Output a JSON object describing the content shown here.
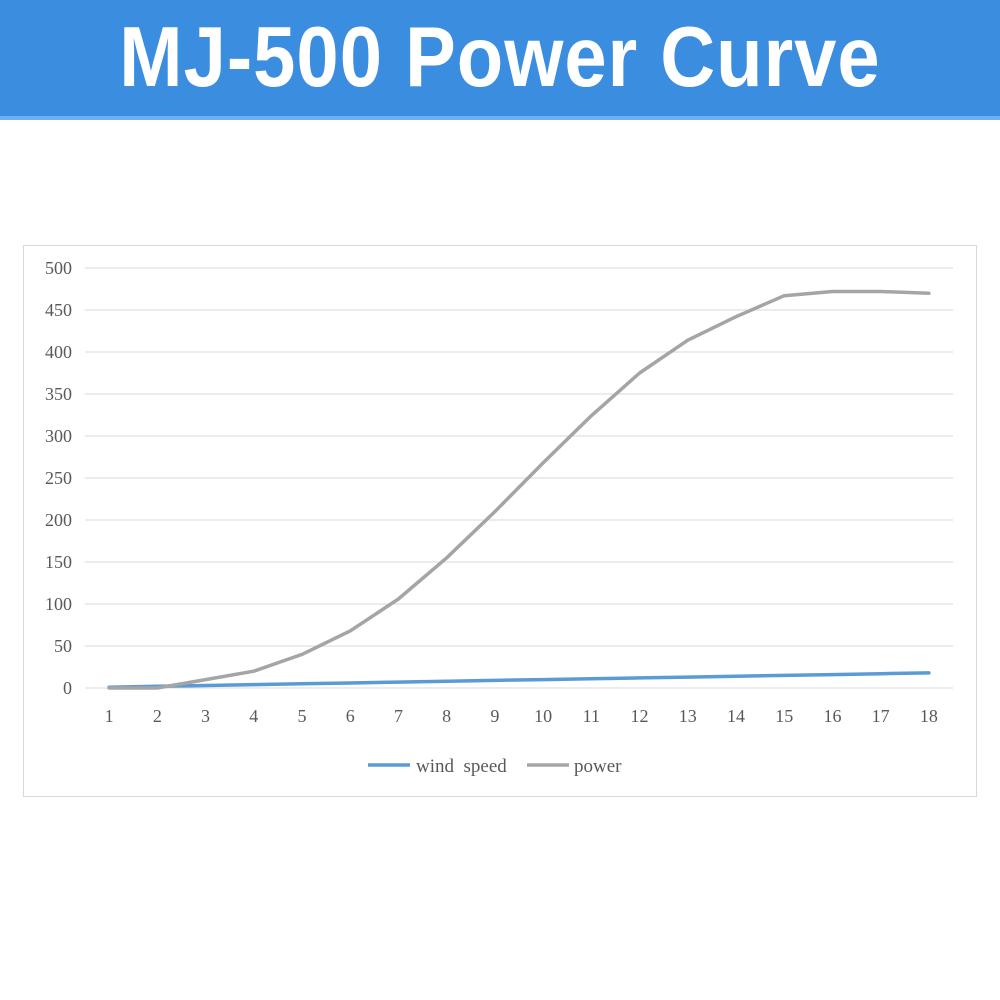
{
  "header": {
    "title": "MJ-500 Power Curve"
  },
  "colors": {
    "banner": "#3b8de0",
    "wind_speed": "#5b9bd5",
    "power": "#a5a5a5",
    "grid": "#d9d9d9"
  },
  "chart_data": {
    "type": "line",
    "title": "",
    "xlabel": "",
    "ylabel": "",
    "x": [
      "1",
      "2",
      "3",
      "4",
      "5",
      "6",
      "7",
      "8",
      "9",
      "10",
      "11",
      "12",
      "13",
      "14",
      "15",
      "16",
      "17",
      "18"
    ],
    "ylim": [
      0,
      500
    ],
    "yticks": [
      0,
      50,
      100,
      150,
      200,
      250,
      300,
      350,
      400,
      450,
      500
    ],
    "grid": true,
    "legend_position": "bottom",
    "series": [
      {
        "name": "wind  speed",
        "values": [
          1,
          2,
          3,
          4,
          5,
          6,
          7,
          8,
          9,
          10,
          11,
          12,
          13,
          14,
          15,
          16,
          17,
          18
        ]
      },
      {
        "name": "power",
        "values": [
          0,
          0,
          10,
          20,
          40,
          68,
          106,
          155,
          210,
          268,
          324,
          375,
          414,
          442,
          467,
          472,
          472,
          470
        ]
      }
    ]
  }
}
